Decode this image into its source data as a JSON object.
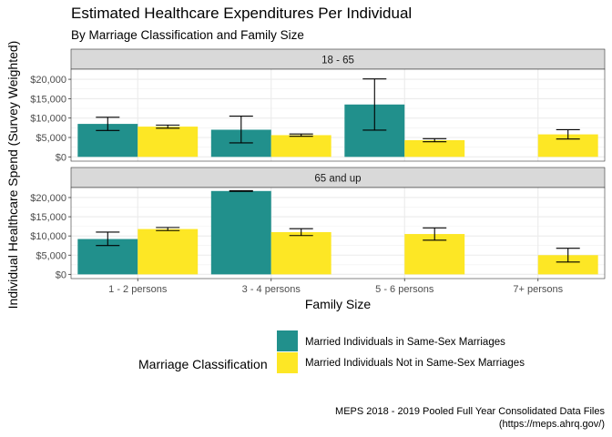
{
  "chart_data": {
    "type": "bar",
    "title": "Estimated Healthcare Expenditures Per Individual",
    "subtitle": "By Marriage Classification and Family Size",
    "xlabel": "Family Size",
    "ylabel": "Individual Healthcare Spend (Survey Weighted)",
    "caption": [
      "MEPS 2018 - 2019 Pooled Full Year Consolidated Data Files",
      "(https://meps.ahrq.gov/)"
    ],
    "categories": [
      "1 - 2 persons",
      "3 - 4 persons",
      "5 - 6 persons",
      "7+ persons"
    ],
    "ylim": [
      -1100,
      22600
    ],
    "yticks": [
      0,
      5000,
      10000,
      15000,
      20000
    ],
    "ytick_labels": [
      "$0",
      "$5,000",
      "$10,000",
      "$15,000",
      "$20,000"
    ],
    "grid": true,
    "legend": {
      "title": "Marriage Classification",
      "position": "bottom",
      "items": [
        {
          "name": "Married Individuals in Same-Sex Marriages",
          "color": "#21908C"
        },
        {
          "name": "Married Individuals Not in Same-Sex Marriages",
          "color": "#FDE725"
        }
      ]
    },
    "panels": [
      {
        "label": "18 - 65",
        "series": [
          {
            "name": "Married Individuals in Same-Sex Marriages",
            "color": "#21908C",
            "values": [
              8500,
              7000,
              13500,
              null
            ],
            "error_low": [
              6800,
              3600,
              6900,
              null
            ],
            "error_high": [
              10200,
              10500,
              20100,
              null
            ]
          },
          {
            "name": "Married Individuals Not in Same-Sex Marriages",
            "color": "#FDE725",
            "values": [
              7800,
              5600,
              4300,
              5800
            ],
            "error_low": [
              7400,
              5300,
              3900,
              4600
            ],
            "error_high": [
              8200,
              5900,
              4700,
              7000
            ]
          }
        ]
      },
      {
        "label": "65 and up",
        "series": [
          {
            "name": "Married Individuals in Same-Sex Marriages",
            "color": "#21908C",
            "values": [
              9200,
              21700,
              null,
              null
            ],
            "error_low": [
              7500,
              21600,
              null,
              null
            ],
            "error_high": [
              11000,
              21800,
              null,
              null
            ]
          },
          {
            "name": "Married Individuals Not in Same-Sex Marriages",
            "color": "#FDE725",
            "values": [
              11800,
              11000,
              10500,
              5000
            ],
            "error_low": [
              11400,
              10100,
              8900,
              3200
            ],
            "error_high": [
              12200,
              11900,
              12100,
              6800
            ]
          }
        ]
      }
    ]
  }
}
